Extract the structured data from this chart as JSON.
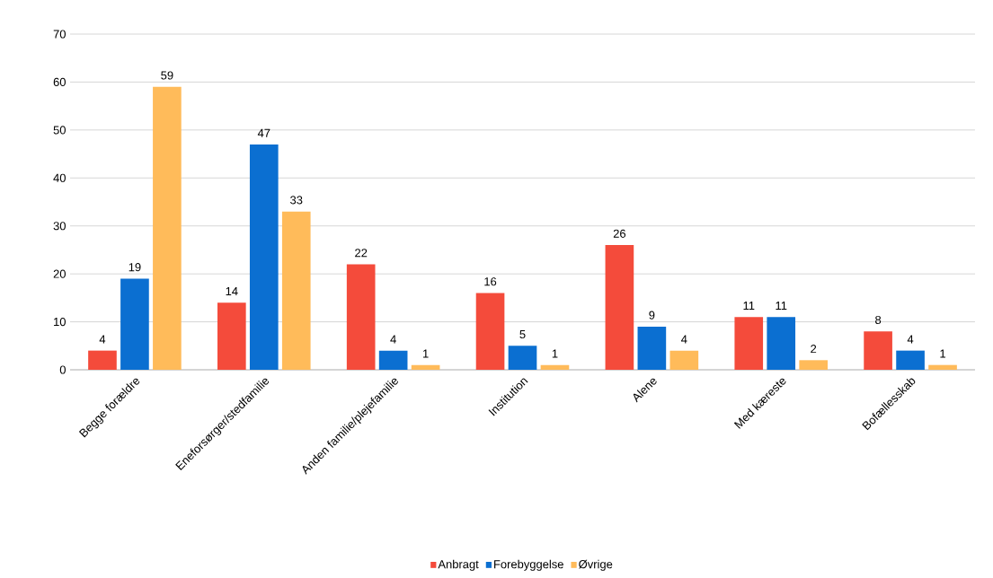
{
  "chart_data": {
    "type": "bar",
    "categories": [
      "Begge forældre",
      "Eneforsørger/stedfamilie",
      "Anden familie/plejefamilie",
      "Institution",
      "Alene",
      "Med kæreste",
      "Bofællesskab"
    ],
    "series": [
      {
        "name": "Anbragt",
        "color": "#f44b3b",
        "values": [
          4,
          14,
          22,
          16,
          26,
          11,
          8
        ]
      },
      {
        "name": "Forebyggelse",
        "color": "#0b6fd1",
        "values": [
          19,
          47,
          4,
          5,
          9,
          11,
          4
        ]
      },
      {
        "name": "Øvrige",
        "color": "#ffbb5a",
        "values": [
          59,
          33,
          1,
          1,
          4,
          2,
          1
        ]
      }
    ],
    "ylim": [
      0,
      70
    ],
    "yticks": [
      0,
      10,
      20,
      30,
      40,
      50,
      60,
      70
    ],
    "grid": "y",
    "legend": "bottom",
    "data_labels": true
  }
}
